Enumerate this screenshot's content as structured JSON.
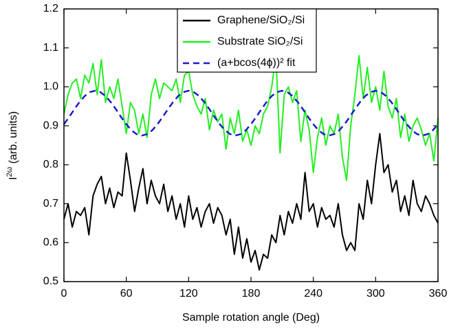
{
  "chart_data": {
    "type": "line",
    "x_label": "Sample rotation angle (Deg)",
    "y_label": {
      "base": "I",
      "sup": "2ω",
      "rest": " (arb. units)"
    },
    "xlim": [
      0,
      360
    ],
    "xticks": [
      0,
      60,
      120,
      180,
      240,
      300,
      360
    ],
    "ylim": [
      0.5,
      1.2
    ],
    "yticks": [
      {
        "value": 0.5,
        "label": "0.5"
      },
      {
        "value": 0.6,
        "label": "0.6"
      },
      {
        "value": 0.7,
        "label": "0.7"
      },
      {
        "value": 0.8,
        "label": "0.8"
      },
      {
        "value": 0.9,
        "label": "0.9"
      },
      {
        "value": 1.0,
        "label": "1.0"
      },
      {
        "value": 1.1,
        "label": "1.1"
      },
      {
        "value": 1.2,
        "label": "1.2"
      }
    ],
    "series": [
      {
        "name": "Graphene/SiO₂/Si",
        "color": "#000000",
        "dash": false,
        "x": [
          0,
          4,
          8,
          12,
          16,
          20,
          24,
          28,
          32,
          36,
          40,
          44,
          48,
          52,
          56,
          60,
          64,
          68,
          72,
          76,
          80,
          84,
          88,
          92,
          96,
          100,
          104,
          108,
          112,
          116,
          120,
          124,
          128,
          132,
          136,
          140,
          144,
          148,
          152,
          156,
          160,
          164,
          168,
          172,
          176,
          180,
          184,
          188,
          192,
          196,
          200,
          204,
          208,
          212,
          216,
          220,
          224,
          228,
          232,
          236,
          240,
          244,
          248,
          252,
          256,
          260,
          264,
          268,
          272,
          276,
          280,
          284,
          288,
          292,
          296,
          300,
          304,
          308,
          312,
          316,
          320,
          324,
          328,
          332,
          336,
          340,
          344,
          348,
          352,
          356,
          360
        ],
        "values": [
          0.66,
          0.7,
          0.64,
          0.68,
          0.67,
          0.69,
          0.62,
          0.72,
          0.75,
          0.77,
          0.7,
          0.74,
          0.69,
          0.73,
          0.72,
          0.83,
          0.76,
          0.68,
          0.74,
          0.79,
          0.7,
          0.76,
          0.72,
          0.7,
          0.75,
          0.68,
          0.72,
          0.66,
          0.7,
          0.64,
          0.72,
          0.66,
          0.69,
          0.64,
          0.68,
          0.7,
          0.65,
          0.69,
          0.67,
          0.62,
          0.66,
          0.57,
          0.64,
          0.56,
          0.61,
          0.55,
          0.58,
          0.53,
          0.57,
          0.56,
          0.62,
          0.6,
          0.67,
          0.62,
          0.68,
          0.65,
          0.7,
          0.66,
          0.78,
          0.68,
          0.7,
          0.64,
          0.69,
          0.66,
          0.67,
          0.64,
          0.7,
          0.62,
          0.58,
          0.6,
          0.58,
          0.7,
          0.66,
          0.76,
          0.7,
          0.8,
          0.88,
          0.78,
          0.8,
          0.73,
          0.76,
          0.68,
          0.72,
          0.67,
          0.76,
          0.7,
          0.68,
          0.72,
          0.7,
          0.67,
          0.65
        ]
      },
      {
        "name": "Substrate SiO₂/Si",
        "color": "#22ee22",
        "dash": false,
        "x": [
          0,
          4,
          8,
          12,
          16,
          20,
          24,
          28,
          32,
          36,
          40,
          44,
          48,
          52,
          56,
          60,
          64,
          68,
          72,
          76,
          80,
          84,
          88,
          92,
          96,
          100,
          104,
          108,
          112,
          116,
          120,
          124,
          128,
          132,
          136,
          140,
          144,
          148,
          152,
          156,
          160,
          164,
          168,
          172,
          176,
          180,
          184,
          188,
          192,
          196,
          200,
          204,
          208,
          212,
          216,
          220,
          224,
          228,
          232,
          236,
          240,
          244,
          248,
          252,
          256,
          260,
          264,
          268,
          272,
          276,
          280,
          284,
          288,
          292,
          296,
          300,
          304,
          308,
          312,
          316,
          320,
          324,
          328,
          332,
          336,
          340,
          344,
          348,
          352,
          356,
          360
        ],
        "values": [
          0.93,
          0.98,
          1.01,
          1.02,
          0.97,
          1.03,
          1.01,
          1.06,
          0.98,
          1.07,
          0.96,
          1.0,
          0.97,
          1.02,
          0.95,
          0.88,
          0.96,
          0.94,
          0.88,
          0.93,
          0.87,
          0.98,
          1.02,
          0.97,
          1.01,
          1.0,
          0.99,
          1.02,
          0.96,
          1.03,
          1.04,
          0.98,
          0.95,
          0.93,
          0.97,
          0.89,
          0.94,
          0.91,
          0.93,
          0.84,
          0.92,
          0.88,
          0.94,
          0.86,
          0.89,
          0.85,
          0.9,
          0.88,
          0.93,
          0.95,
          1.0,
          1.08,
          0.83,
          0.98,
          1.0,
          0.96,
          0.99,
          0.86,
          0.94,
          0.89,
          0.78,
          0.87,
          0.92,
          0.85,
          0.9,
          0.88,
          0.93,
          0.82,
          0.76,
          0.9,
          0.98,
          1.08,
          0.97,
          1.05,
          0.96,
          1.0,
          0.94,
          1.04,
          0.95,
          0.92,
          0.97,
          0.87,
          0.93,
          0.86,
          0.9,
          0.92,
          0.89,
          0.85,
          0.88,
          0.81,
          0.92
        ]
      },
      {
        "name": "(a+bcos(4ϕ))² fit",
        "color": "#1a1acc",
        "dash": true,
        "x": [
          0,
          5,
          10,
          15,
          20,
          25,
          30,
          35,
          40,
          45,
          50,
          55,
          60,
          65,
          70,
          75,
          80,
          85,
          90,
          95,
          100,
          105,
          110,
          115,
          120,
          125,
          130,
          135,
          140,
          145,
          150,
          155,
          160,
          165,
          170,
          175,
          180,
          185,
          190,
          195,
          200,
          205,
          210,
          215,
          220,
          225,
          230,
          235,
          240,
          245,
          250,
          255,
          260,
          265,
          270,
          275,
          280,
          285,
          290,
          295,
          300,
          305,
          310,
          315,
          320,
          325,
          330,
          335,
          340,
          345,
          350,
          355,
          360
        ],
        "values": [
          0.904,
          0.9225,
          0.9425,
          0.961,
          0.9765,
          0.9865,
          0.99,
          0.9865,
          0.9765,
          0.961,
          0.9425,
          0.9225,
          0.904,
          0.8885,
          0.8785,
          0.875,
          0.8785,
          0.8885,
          0.904,
          0.9225,
          0.9425,
          0.961,
          0.9765,
          0.9865,
          0.99,
          0.9865,
          0.9765,
          0.961,
          0.9425,
          0.9225,
          0.904,
          0.8885,
          0.8785,
          0.875,
          0.8785,
          0.8885,
          0.904,
          0.9225,
          0.9425,
          0.961,
          0.9765,
          0.9865,
          0.99,
          0.9865,
          0.9765,
          0.961,
          0.9425,
          0.9225,
          0.904,
          0.8885,
          0.8785,
          0.875,
          0.8785,
          0.8885,
          0.904,
          0.9225,
          0.9425,
          0.961,
          0.9765,
          0.9865,
          0.99,
          0.9865,
          0.9765,
          0.961,
          0.9425,
          0.9225,
          0.904,
          0.8885,
          0.8785,
          0.875,
          0.8785,
          0.8885,
          0.904
        ]
      }
    ]
  }
}
